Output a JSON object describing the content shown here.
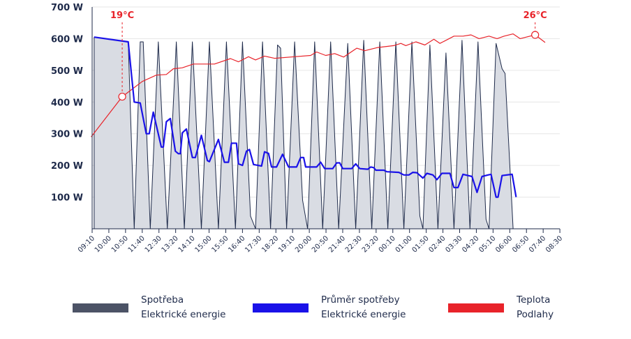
{
  "chart_data": {
    "type": "line",
    "y_ticks": [
      "100 W",
      "200 W",
      "300 W",
      "400 W",
      "500 W",
      "600 W",
      "700 W"
    ],
    "ylim": [
      0,
      700
    ],
    "x_ticks": [
      "09:10",
      "10:00",
      "10:50",
      "11:40",
      "12:30",
      "13:20",
      "14:10",
      "15:00",
      "15:50",
      "16:40",
      "17:30",
      "18:20",
      "19:10",
      "20:00",
      "20:50",
      "21:40",
      "22:30",
      "23:20",
      "00:10",
      "01:00",
      "01:50",
      "02:40",
      "03:30",
      "04:20",
      "05:10",
      "06:00",
      "06:50",
      "07:40",
      "08:30"
    ],
    "x_range_hours": [
      0,
      23.33
    ],
    "grid": "horizontal",
    "colors": {
      "consumption_fill": "#d9dce3",
      "consumption_line": "#1e2a4a",
      "average": "#1a12e8",
      "temperature": "#e8232a"
    },
    "annotations": [
      {
        "label": "19°C",
        "t": 1.5,
        "value": 417
      },
      {
        "label": "26°C",
        "t": 22.1,
        "value": 612
      }
    ],
    "series": [
      {
        "name": "Spotřeba Elektrické energie",
        "type": "area",
        "points": [
          [
            0.1,
            0
          ],
          [
            0.1,
            605
          ],
          [
            1.8,
            590
          ],
          [
            2.1,
            0
          ],
          [
            2.4,
            590
          ],
          [
            2.55,
            590
          ],
          [
            2.9,
            0
          ],
          [
            3.3,
            590
          ],
          [
            3.75,
            0
          ],
          [
            4.2,
            590
          ],
          [
            4.6,
            0
          ],
          [
            5.0,
            590
          ],
          [
            5.45,
            0
          ],
          [
            5.85,
            590
          ],
          [
            6.3,
            0
          ],
          [
            6.7,
            590
          ],
          [
            7.15,
            0
          ],
          [
            7.5,
            590
          ],
          [
            7.9,
            40
          ],
          [
            8.15,
            0
          ],
          [
            8.5,
            590
          ],
          [
            8.9,
            0
          ],
          [
            9.25,
            580
          ],
          [
            9.4,
            570
          ],
          [
            9.7,
            0
          ],
          [
            10.1,
            590
          ],
          [
            10.5,
            90
          ],
          [
            10.75,
            0
          ],
          [
            11.1,
            590
          ],
          [
            11.5,
            0
          ],
          [
            11.9,
            590
          ],
          [
            12.3,
            0
          ],
          [
            12.75,
            585
          ],
          [
            13.15,
            0
          ],
          [
            13.55,
            595
          ],
          [
            13.95,
            0
          ],
          [
            14.35,
            590
          ],
          [
            14.75,
            0
          ],
          [
            15.15,
            590
          ],
          [
            15.55,
            0
          ],
          [
            15.95,
            590
          ],
          [
            16.35,
            40
          ],
          [
            16.5,
            0
          ],
          [
            16.85,
            580
          ],
          [
            17.25,
            0
          ],
          [
            17.65,
            555
          ],
          [
            18.05,
            0
          ],
          [
            18.45,
            595
          ],
          [
            18.85,
            0
          ],
          [
            19.25,
            590
          ],
          [
            19.65,
            30
          ],
          [
            19.8,
            0
          ],
          [
            20.15,
            585
          ],
          [
            20.45,
            505
          ],
          [
            20.6,
            490
          ],
          [
            21.0,
            0
          ]
        ]
      },
      {
        "name": "Průměr spotřeby Elektrické energie",
        "type": "line",
        "points": [
          [
            0.1,
            605
          ],
          [
            1.8,
            590
          ],
          [
            2.1,
            400
          ],
          [
            2.4,
            397
          ],
          [
            2.7,
            300
          ],
          [
            2.85,
            300
          ],
          [
            3.05,
            368
          ],
          [
            3.45,
            258
          ],
          [
            3.55,
            258
          ],
          [
            3.7,
            338
          ],
          [
            3.9,
            348
          ],
          [
            4.15,
            245
          ],
          [
            4.3,
            237
          ],
          [
            4.4,
            237
          ],
          [
            4.5,
            303
          ],
          [
            4.7,
            315
          ],
          [
            5.0,
            225
          ],
          [
            5.15,
            225
          ],
          [
            5.45,
            295
          ],
          [
            5.75,
            215
          ],
          [
            5.85,
            212
          ],
          [
            6.3,
            282
          ],
          [
            6.6,
            210
          ],
          [
            6.8,
            210
          ],
          [
            6.95,
            270
          ],
          [
            7.2,
            270
          ],
          [
            7.3,
            205
          ],
          [
            7.5,
            200
          ],
          [
            7.7,
            245
          ],
          [
            7.85,
            250
          ],
          [
            8.05,
            203
          ],
          [
            8.45,
            198
          ],
          [
            8.6,
            243
          ],
          [
            8.8,
            238
          ],
          [
            8.95,
            195
          ],
          [
            9.2,
            195
          ],
          [
            9.5,
            235
          ],
          [
            9.8,
            195
          ],
          [
            10.2,
            195
          ],
          [
            10.4,
            225
          ],
          [
            10.55,
            225
          ],
          [
            10.65,
            195
          ],
          [
            11.2,
            195
          ],
          [
            11.4,
            210
          ],
          [
            11.6,
            190
          ],
          [
            12.0,
            190
          ],
          [
            12.2,
            208
          ],
          [
            12.35,
            208
          ],
          [
            12.5,
            190
          ],
          [
            12.95,
            190
          ],
          [
            13.15,
            205
          ],
          [
            13.35,
            190
          ],
          [
            13.75,
            188
          ],
          [
            13.9,
            195
          ],
          [
            14.05,
            193
          ],
          [
            14.15,
            185
          ],
          [
            14.55,
            185
          ],
          [
            14.7,
            180
          ],
          [
            15.3,
            178
          ],
          [
            15.55,
            170
          ],
          [
            15.8,
            170
          ],
          [
            16.0,
            178
          ],
          [
            16.2,
            177
          ],
          [
            16.5,
            160
          ],
          [
            16.7,
            175
          ],
          [
            17.0,
            170
          ],
          [
            17.2,
            155
          ],
          [
            17.45,
            175
          ],
          [
            17.85,
            175
          ],
          [
            18.05,
            130
          ],
          [
            18.25,
            130
          ],
          [
            18.5,
            172
          ],
          [
            18.95,
            165
          ],
          [
            19.2,
            115
          ],
          [
            19.45,
            165
          ],
          [
            19.75,
            170
          ],
          [
            19.9,
            172
          ],
          [
            20.15,
            100
          ],
          [
            20.25,
            100
          ],
          [
            20.45,
            168
          ],
          [
            20.95,
            172
          ],
          [
            21.15,
            100
          ]
        ]
      },
      {
        "name": "Teplota Podlahy",
        "type": "line",
        "points": [
          [
            -0.05,
            290
          ],
          [
            1.5,
            417
          ],
          [
            2.5,
            465
          ],
          [
            3.2,
            485
          ],
          [
            3.7,
            487
          ],
          [
            4.05,
            505
          ],
          [
            4.5,
            508
          ],
          [
            5.05,
            520
          ],
          [
            6.1,
            520
          ],
          [
            6.9,
            537
          ],
          [
            7.3,
            527
          ],
          [
            7.8,
            543
          ],
          [
            8.15,
            533
          ],
          [
            8.6,
            545
          ],
          [
            9.1,
            538
          ],
          [
            10.1,
            543
          ],
          [
            10.9,
            547
          ],
          [
            11.2,
            558
          ],
          [
            11.65,
            547
          ],
          [
            12.1,
            553
          ],
          [
            12.55,
            542
          ],
          [
            13.2,
            570
          ],
          [
            13.6,
            562
          ],
          [
            14.25,
            572
          ],
          [
            15.05,
            578
          ],
          [
            15.4,
            585
          ],
          [
            15.65,
            578
          ],
          [
            16.15,
            590
          ],
          [
            16.6,
            580
          ],
          [
            17.05,
            598
          ],
          [
            17.35,
            585
          ],
          [
            18.05,
            608
          ],
          [
            18.5,
            608
          ],
          [
            18.9,
            612
          ],
          [
            19.3,
            600
          ],
          [
            19.8,
            608
          ],
          [
            20.2,
            600
          ],
          [
            20.55,
            608
          ],
          [
            21.0,
            615
          ],
          [
            21.35,
            600
          ],
          [
            22.1,
            612
          ],
          [
            22.6,
            588
          ]
        ]
      }
    ]
  },
  "legend": [
    {
      "line1": "Spotřeba",
      "line2": "Elektrické energie",
      "color": "#4c5366"
    },
    {
      "line1": "Průměr spotřeby",
      "line2": "Elektrické energie",
      "color": "#1a12e8"
    },
    {
      "line1": "Teplota",
      "line2": "Podlahy",
      "color": "#e8232a"
    }
  ]
}
